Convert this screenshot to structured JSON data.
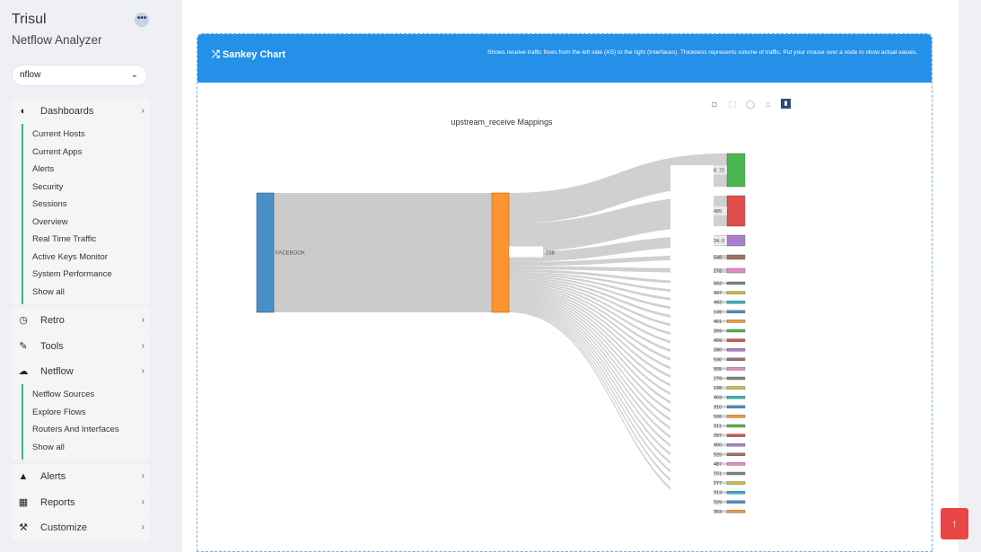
{
  "brand": {
    "title": "Trisul",
    "subtitle": "Netflow Analyzer",
    "more": "•••"
  },
  "context_select": {
    "value": "nflow",
    "chevron": "⌄"
  },
  "menu": [
    {
      "key": "dashboards",
      "icon": "dashboard-icon",
      "glyph": "◐",
      "label": "Dashboards",
      "items": [
        "Current Hosts",
        "Current Apps",
        "Alerts",
        "Security",
        "Sessions",
        "Overview",
        "Real Time Traffic",
        "Active Keys Monitor",
        "System Performance",
        "Show all"
      ]
    },
    {
      "key": "retro",
      "icon": "clock-icon",
      "glyph": "◷",
      "label": "Retro",
      "items": []
    },
    {
      "key": "tools",
      "icon": "wrench-icon",
      "glyph": "✎",
      "label": "Tools",
      "items": []
    },
    {
      "key": "netflow",
      "icon": "cloud-icon",
      "glyph": "☁",
      "label": "Netflow",
      "items": [
        "Netflow Sources",
        "Explore Flows",
        "Routers And Interfaces",
        "Show all"
      ]
    },
    {
      "key": "alerts",
      "icon": "bell-icon",
      "glyph": "▲",
      "label": "Alerts",
      "items": []
    },
    {
      "key": "reports",
      "icon": "calendar-icon",
      "glyph": "▦",
      "label": "Reports",
      "items": []
    },
    {
      "key": "customize",
      "icon": "hammer-icon",
      "glyph": "⚒",
      "label": "Customize",
      "items": []
    }
  ],
  "card": {
    "title": "Sankey Chart",
    "title_icon": "shuffle-icon",
    "description": "Shows receive traffic flows from the left side (AS) to the right (Interfaces). Thickness represents volume of traffic. Put your mouse over a node to show actual values."
  },
  "toolbar": [
    {
      "name": "camera-icon",
      "glyph": "◘"
    },
    {
      "name": "box-select-icon",
      "glyph": "⬚"
    },
    {
      "name": "lasso-icon",
      "glyph": "◯"
    },
    {
      "name": "home-icon",
      "glyph": "⌂"
    },
    {
      "name": "plotly-logo-icon",
      "glyph": "▮"
    }
  ],
  "chart_data": {
    "type": "sankey",
    "title": "upstream_receive Mappings",
    "source_nodes": [
      {
        "label": "FACEBOOK",
        "color": "#4a8fc6"
      }
    ],
    "middle_nodes": [
      {
        "label": "",
        "color": "#fb9431"
      }
    ],
    "target_nodes": [
      {
        "label": "8..72",
        "color": "#4cb750",
        "weight": 36
      },
      {
        "label": "485",
        "color": "#e04b4b",
        "weight": 34
      },
      {
        "label": "34..0",
        "color": "#a87fcf",
        "weight": 12
      },
      {
        "label": "548",
        "color": "#9e7063",
        "weight": 5
      },
      {
        "label": "278",
        "color": "#e888cc",
        "weight": 4
      },
      {
        "label": "562",
        "color": "#808080",
        "weight": 3
      },
      {
        "label": "497",
        "color": "#c3c23a",
        "weight": 2
      },
      {
        "label": "492",
        "color": "#25b8ca",
        "weight": 2
      },
      {
        "label": "149",
        "color": "#4a8fc6",
        "weight": 2
      },
      {
        "label": "401",
        "color": "#fb9431",
        "weight": 2
      },
      {
        "label": "269",
        "color": "#4cb750",
        "weight": 2
      },
      {
        "label": "499",
        "color": "#e04b4b",
        "weight": 2
      },
      {
        "label": "280",
        "color": "#a87fcf",
        "weight": 2
      },
      {
        "label": "530",
        "color": "#9e7063",
        "weight": 2
      },
      {
        "label": "555",
        "color": "#e888cc",
        "weight": 2
      },
      {
        "label": "279",
        "color": "#808080",
        "weight": 2
      },
      {
        "label": "138",
        "color": "#c3c23a",
        "weight": 2
      },
      {
        "label": "403",
        "color": "#25b8ca",
        "weight": 2
      },
      {
        "label": "310",
        "color": "#4a8fc6",
        "weight": 2
      },
      {
        "label": "526",
        "color": "#fb9431",
        "weight": 2
      },
      {
        "label": "311",
        "color": "#4cb750",
        "weight": 2
      },
      {
        "label": "297",
        "color": "#e04b4b",
        "weight": 2
      },
      {
        "label": "400",
        "color": "#a87fcf",
        "weight": 2
      },
      {
        "label": "525",
        "color": "#9e7063",
        "weight": 2
      },
      {
        "label": "487",
        "color": "#e888cc",
        "weight": 2
      },
      {
        "label": "151",
        "color": "#808080",
        "weight": 2
      },
      {
        "label": "277",
        "color": "#c3c23a",
        "weight": 2
      },
      {
        "label": "313",
        "color": "#25b8ca",
        "weight": 2
      },
      {
        "label": "529",
        "color": "#4a8fc6",
        "weight": 2
      },
      {
        "label": "303",
        "color": "#fb9431",
        "weight": 2
      }
    ],
    "middle_label": "238"
  },
  "scroll_top": {
    "glyph": "↑"
  }
}
